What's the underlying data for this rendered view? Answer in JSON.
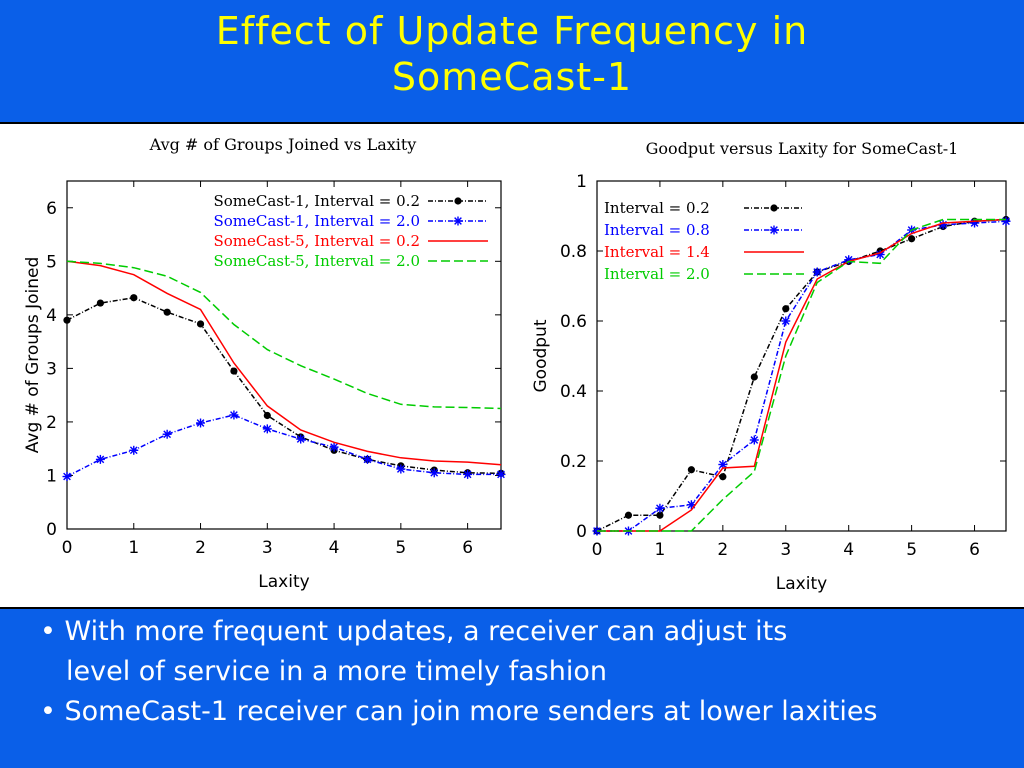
{
  "slide": {
    "title_line1": "Effect of Update Frequency in",
    "title_line2": "SomeCast-1",
    "bullets": [
      {
        "text": "• With more frequent updates, a receiver can adjust its",
        "indent": false
      },
      {
        "text": "level of service in a more timely fashion",
        "indent": true
      },
      {
        "text": "• SomeCast-1 receiver can join more senders at lower laxities",
        "indent": false
      }
    ]
  },
  "chart_data": [
    {
      "type": "line",
      "title": "Avg # of Groups Joined vs Laxity",
      "xlabel": "Laxity",
      "ylabel": "Avg # of Groups Joined",
      "xlim": [
        0,
        6.5
      ],
      "ylim": [
        0,
        6.5
      ],
      "xticks": [
        0,
        1,
        2,
        3,
        4,
        5,
        6
      ],
      "yticks": [
        0,
        1,
        2,
        3,
        4,
        5,
        6
      ],
      "grid": false,
      "legend_position": "top-right",
      "series": [
        {
          "name": "SomeCast-1, Interval = 0.2",
          "color": "#000000",
          "dash": "dashdot",
          "marker": "dot",
          "x": [
            0,
            0.5,
            1,
            1.5,
            2,
            2.5,
            3,
            3.5,
            4,
            4.5,
            5,
            5.5,
            6,
            6.5
          ],
          "y": [
            3.9,
            4.22,
            4.32,
            4.05,
            3.83,
            2.95,
            2.12,
            1.72,
            1.47,
            1.3,
            1.18,
            1.1,
            1.05,
            1.04
          ]
        },
        {
          "name": "SomeCast-1, Interval = 2.0",
          "color": "#0000ff",
          "dash": "dashdot",
          "marker": "star",
          "x": [
            0,
            0.5,
            1,
            1.5,
            2,
            2.5,
            3,
            3.5,
            4,
            4.5,
            5,
            5.5,
            6,
            6.5
          ],
          "y": [
            0.98,
            1.3,
            1.47,
            1.77,
            1.98,
            2.13,
            1.87,
            1.68,
            1.53,
            1.3,
            1.12,
            1.05,
            1.02,
            1.02
          ]
        },
        {
          "name": "SomeCast-5, Interval = 0.2",
          "color": "#ff0000",
          "dash": "solid",
          "marker": "none",
          "x": [
            0,
            0.5,
            1,
            1.5,
            2,
            2.5,
            3,
            3.5,
            4,
            4.5,
            5,
            5.5,
            6,
            6.5
          ],
          "y": [
            5.0,
            4.92,
            4.75,
            4.4,
            4.1,
            3.1,
            2.3,
            1.85,
            1.62,
            1.45,
            1.33,
            1.27,
            1.25,
            1.2
          ]
        },
        {
          "name": "SomeCast-5, Interval = 2.0",
          "color": "#00cc00",
          "dash": "dashed",
          "marker": "none",
          "x": [
            0,
            0.5,
            1,
            1.5,
            2,
            2.5,
            3,
            3.5,
            4,
            4.5,
            5,
            5.5,
            6,
            6.5
          ],
          "y": [
            5.0,
            4.96,
            4.88,
            4.72,
            4.42,
            3.82,
            3.35,
            3.05,
            2.8,
            2.53,
            2.33,
            2.28,
            2.27,
            2.25
          ]
        }
      ]
    },
    {
      "type": "line",
      "title": "Goodput versus Laxity for SomeCast-1",
      "xlabel": "Laxity",
      "ylabel": "Goodput",
      "xlim": [
        0,
        6.5
      ],
      "ylim": [
        0,
        1
      ],
      "xticks": [
        0,
        1,
        2,
        3,
        4,
        5,
        6
      ],
      "yticks": [
        0,
        0.2,
        0.4,
        0.6,
        0.8,
        1
      ],
      "grid": false,
      "legend_position": "top-left",
      "series": [
        {
          "name": "Interval = 0.2",
          "color": "#000000",
          "dash": "dashdot",
          "marker": "dot",
          "x": [
            0,
            0.5,
            1,
            1.5,
            2,
            2.5,
            3,
            3.5,
            4,
            4.5,
            5,
            5.5,
            6,
            6.5
          ],
          "y": [
            0,
            0.045,
            0.045,
            0.175,
            0.155,
            0.44,
            0.635,
            0.74,
            0.77,
            0.8,
            0.835,
            0.87,
            0.885,
            0.89
          ]
        },
        {
          "name": "Interval = 0.8",
          "color": "#0000ff",
          "dash": "dashdot",
          "marker": "star",
          "x": [
            0,
            0.5,
            1,
            1.5,
            2,
            2.5,
            3,
            3.5,
            4,
            4.5,
            5,
            5.5,
            6,
            6.5
          ],
          "y": [
            0,
            0,
            0.065,
            0.075,
            0.19,
            0.26,
            0.6,
            0.74,
            0.775,
            0.79,
            0.86,
            0.875,
            0.88,
            0.885
          ]
        },
        {
          "name": "Interval = 1.4",
          "color": "#ff0000",
          "dash": "solid",
          "marker": "none",
          "x": [
            0,
            0.5,
            1,
            1.5,
            2,
            2.5,
            3,
            3.5,
            4,
            4.5,
            5,
            5.5,
            6,
            6.5
          ],
          "y": [
            0,
            0,
            0,
            0.06,
            0.18,
            0.185,
            0.54,
            0.72,
            0.77,
            0.795,
            0.85,
            0.88,
            0.885,
            0.89
          ]
        },
        {
          "name": "Interval = 2.0",
          "color": "#00cc00",
          "dash": "dashed",
          "marker": "none",
          "x": [
            0,
            0.5,
            1,
            1.5,
            2,
            2.5,
            3,
            3.5,
            4,
            4.5,
            5,
            5.5,
            6,
            6.5
          ],
          "y": [
            0,
            0,
            0,
            0,
            0.09,
            0.17,
            0.5,
            0.71,
            0.77,
            0.765,
            0.86,
            0.89,
            0.89,
            0.89
          ]
        }
      ]
    }
  ]
}
